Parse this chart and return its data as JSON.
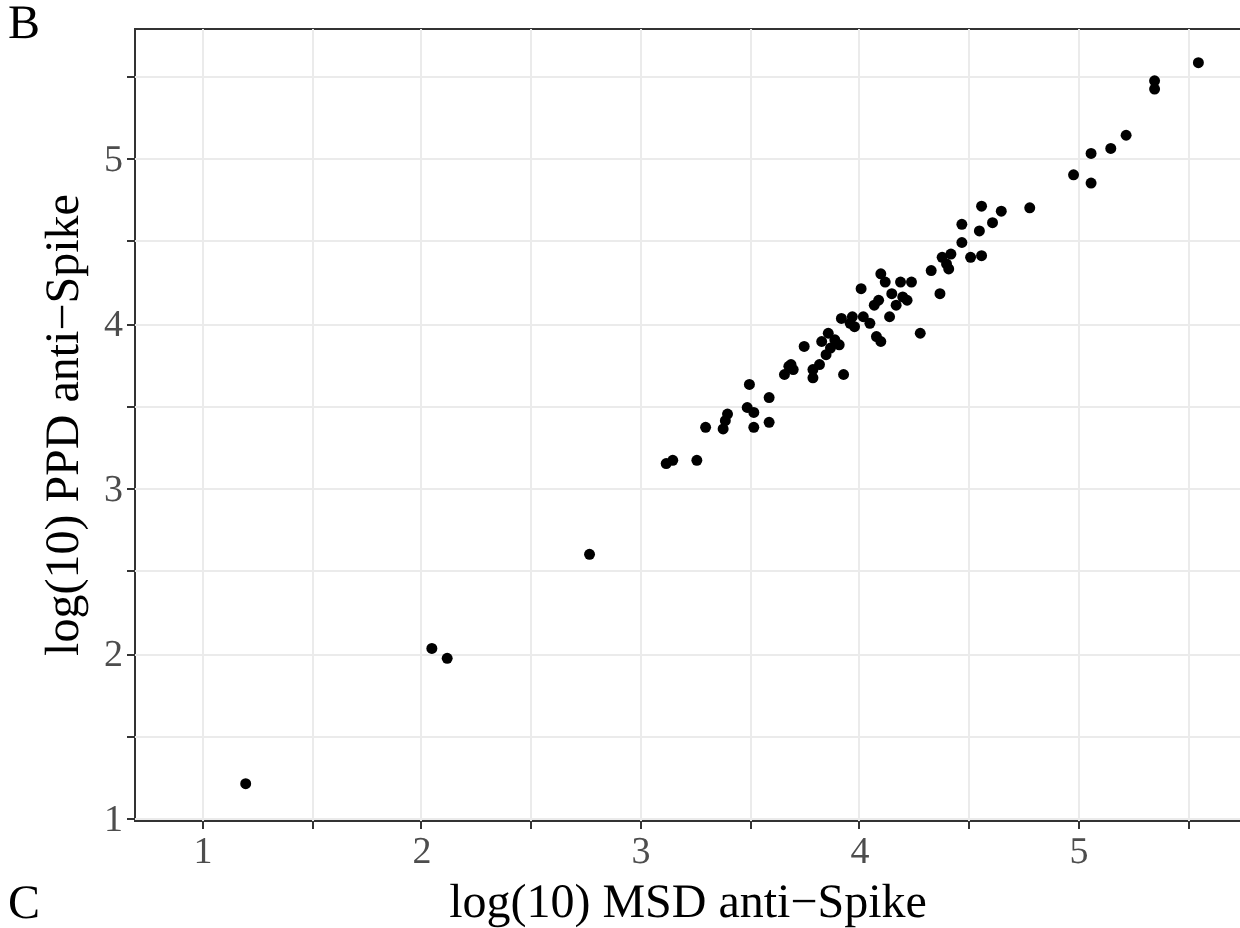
{
  "chart_data": {
    "type": "scatter",
    "xlabel": "log(10) MSD anti−Spike",
    "ylabel": "log(10) PPD anti−Spike",
    "annotations": [
      "B",
      "C"
    ],
    "x": [
      1.2,
      2.05,
      2.12,
      2.77,
      3.12,
      3.15,
      3.26,
      3.3,
      3.38,
      3.39,
      3.4,
      3.5,
      3.49,
      3.52,
      3.52,
      3.59,
      3.59,
      3.66,
      3.68,
      3.7,
      3.69,
      3.75,
      3.79,
      3.79,
      3.82,
      3.83,
      3.85,
      3.86,
      3.87,
      3.89,
      3.91,
      3.92,
      3.93,
      3.96,
      3.98,
      3.97,
      4.01,
      4.02,
      4.05,
      4.08,
      4.1,
      4.07,
      4.09,
      4.1,
      4.12,
      4.14,
      4.15,
      4.17,
      4.19,
      4.2,
      4.22,
      4.24,
      4.28,
      4.33,
      4.37,
      4.38,
      4.4,
      4.42,
      4.41,
      4.47,
      4.47,
      4.51,
      4.55,
      4.56,
      4.56,
      4.61,
      4.65,
      4.78,
      4.98,
      5.06,
      5.06,
      5.15,
      5.22,
      5.35,
      5.35,
      5.55
    ],
    "series": [
      {
        "color": "#000000",
        "values": [
          1.21,
          2.03,
          1.97,
          2.6,
          3.15,
          3.17,
          3.17,
          3.37,
          3.36,
          3.41,
          3.45,
          3.63,
          3.49,
          3.46,
          3.37,
          3.55,
          3.4,
          3.69,
          3.74,
          3.72,
          3.75,
          3.86,
          3.67,
          3.72,
          3.75,
          3.89,
          3.81,
          3.94,
          3.85,
          3.9,
          3.87,
          4.03,
          3.69,
          4.0,
          3.98,
          4.04,
          4.21,
          4.04,
          4.0,
          3.92,
          3.89,
          4.11,
          4.14,
          4.3,
          4.25,
          4.04,
          4.18,
          4.11,
          4.25,
          4.16,
          4.14,
          4.25,
          3.94,
          4.32,
          4.18,
          4.4,
          4.36,
          4.42,
          4.33,
          4.49,
          4.6,
          4.4,
          4.56,
          4.41,
          4.71,
          4.61,
          4.68,
          4.7,
          4.9,
          5.03,
          4.85,
          5.06,
          5.14,
          5.47,
          5.42,
          5.58
        ]
      }
    ],
    "xlim": [
      0.69,
      5.74
    ],
    "ylim": [
      0.99,
      5.79
    ],
    "xticks": [
      1,
      {
        "value": 1.5,
        "label": null
      },
      2,
      {
        "value": 2.5,
        "label": null
      },
      3,
      {
        "value": 3.5,
        "label": null
      },
      4,
      {
        "value": 4.5,
        "label": null
      },
      5,
      {
        "value": 5.5,
        "label": null
      }
    ],
    "yticks": [
      1,
      {
        "value": 1.5,
        "label": null
      },
      2,
      {
        "value": 2.5,
        "label": null
      },
      3,
      {
        "value": 3.5,
        "label": null
      },
      4,
      {
        "value": 4.5,
        "label": null
      },
      5,
      {
        "value": 5.5,
        "label": null
      }
    ],
    "grid": true,
    "marker": "circle"
  }
}
